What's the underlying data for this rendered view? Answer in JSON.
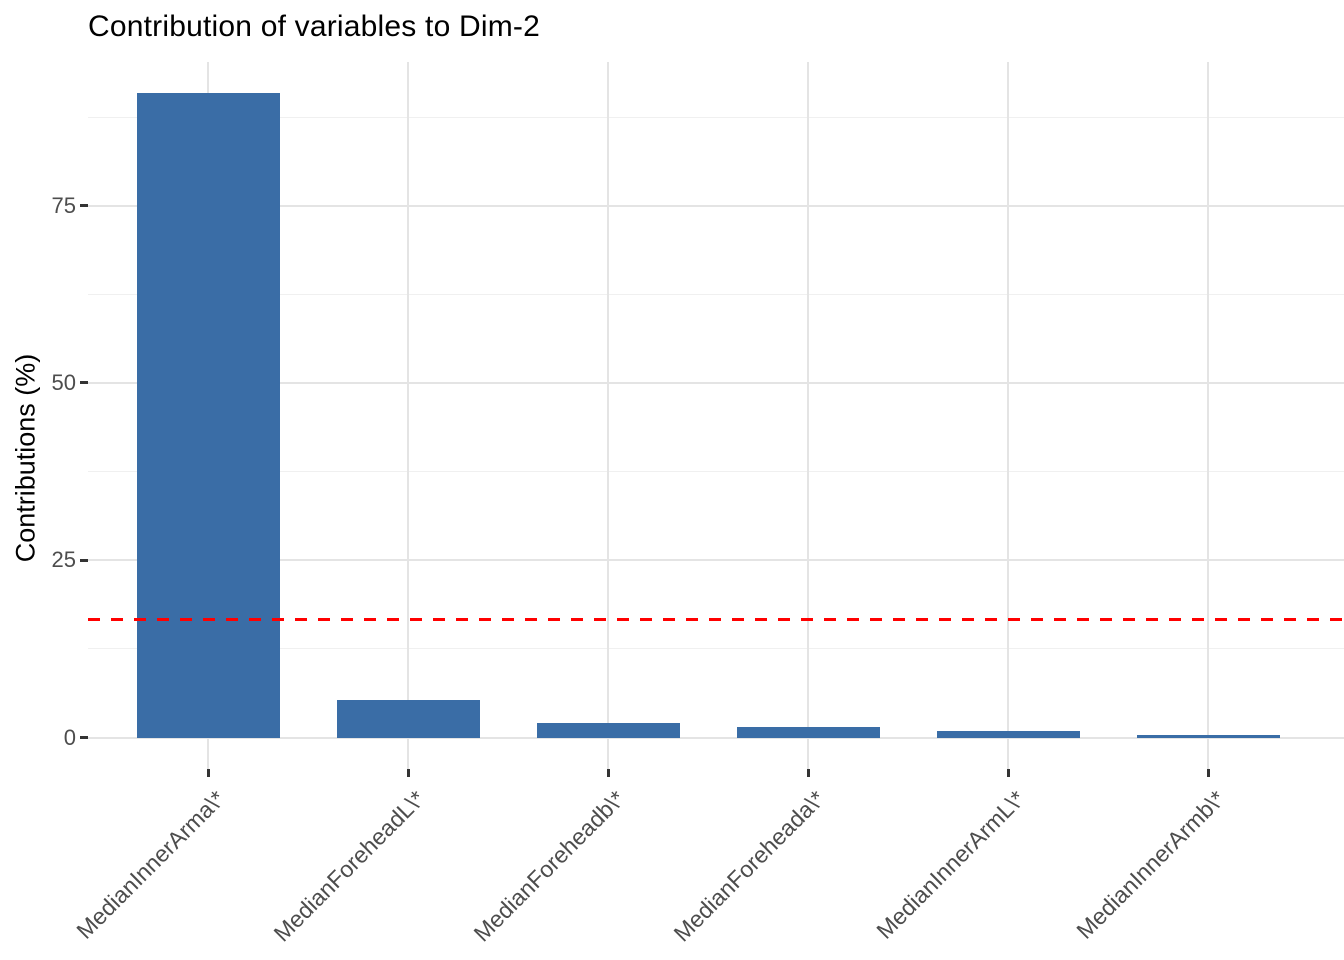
{
  "page": {
    "title": "Contribution of variables to Dim-2"
  },
  "chart_data": {
    "type": "bar",
    "title": "Contribution of variables to Dim-2",
    "xlabel": "",
    "ylabel": "Contributions (%)",
    "categories": [
      "MedianInnerArma\\*",
      "MedianForeheadL\\*",
      "MedianForeheadb\\*",
      "MedianForeheada\\*",
      "MedianInnerArmL\\*",
      "MedianInnerArmb\\*"
    ],
    "values": [
      90.9,
      5.3,
      2.0,
      1.5,
      0.85,
      0.35
    ],
    "yticks": [
      0,
      25,
      50,
      75
    ],
    "yticks_minor": [
      12.5,
      37.5,
      62.5,
      87.5
    ],
    "ylim": [
      -4.5,
      95.3
    ],
    "grid": true,
    "legend": "none",
    "bar_color": "#3A6DA6",
    "grid_major_color": "#E4E4E4",
    "grid_minor_color": "#F0F0F0",
    "tick_color": "#333333",
    "tick_label_color": "#4D4D4D",
    "reference_line": {
      "value": 16.67,
      "color": "#FF0000",
      "style": "dashed"
    }
  }
}
